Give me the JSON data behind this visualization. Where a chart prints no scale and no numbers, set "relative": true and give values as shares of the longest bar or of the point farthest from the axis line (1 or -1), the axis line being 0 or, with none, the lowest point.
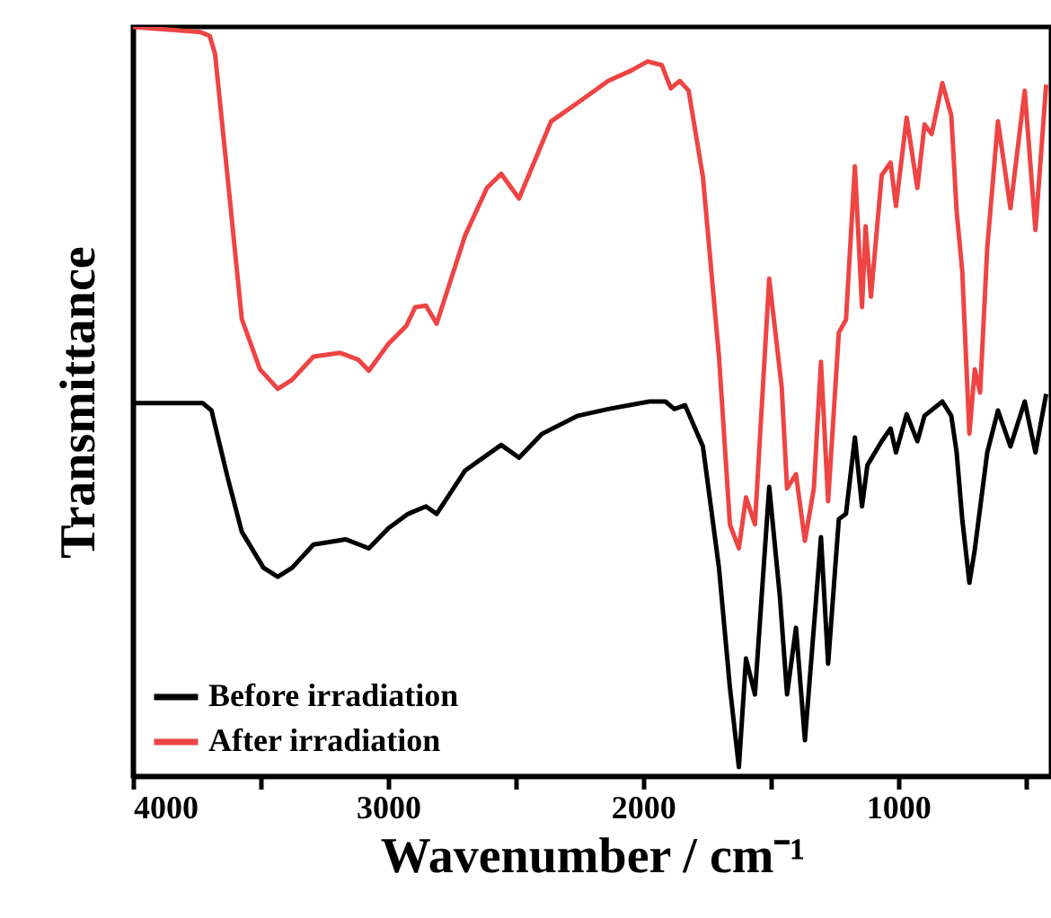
{
  "chart_data": {
    "type": "line",
    "relative": true,
    "xlabel": "Wavenumber / cm⁻¹",
    "ylabel": "Transmittance",
    "xlim": [
      4000,
      400
    ],
    "xticks": [
      4000,
      {
        "value": 3500,
        "label": null
      },
      3000,
      {
        "value": 2500,
        "label": null
      },
      2000,
      {
        "value": 1500,
        "label": null
      },
      1000,
      {
        "value": 500,
        "label": null
      }
    ],
    "legend": "bottom left",
    "grid": false,
    "marker": "none",
    "line_style": "solid",
    "tick_labels": "x",
    "series": [
      {
        "name": "Before irradiation",
        "color": "#000000",
        "x": [
          4000,
          3727,
          3692,
          3629,
          3573,
          3488,
          3432,
          3376,
          3292,
          3166,
          3075,
          2998,
          2921,
          2851,
          2809,
          2697,
          2556,
          2486,
          2395,
          2255,
          2136,
          1975,
          1912,
          1877,
          1835,
          1765,
          1702,
          1659,
          1624,
          1596,
          1561,
          1505,
          1463,
          1435,
          1400,
          1365,
          1330,
          1302,
          1274,
          1232,
          1204,
          1169,
          1141,
          1120,
          1064,
          1029,
          1008,
          966,
          924,
          896,
          826,
          791,
          770,
          748,
          720,
          699,
          650,
          608,
          559,
          503,
          461,
          419
        ],
        "values": [
          0.498,
          0.498,
          0.488,
          0.399,
          0.326,
          0.278,
          0.266,
          0.278,
          0.309,
          0.316,
          0.304,
          0.331,
          0.35,
          0.36,
          0.35,
          0.408,
          0.442,
          0.425,
          0.457,
          0.481,
          0.49,
          0.5,
          0.5,
          0.49,
          0.495,
          0.44,
          0.278,
          0.118,
          0.012,
          0.157,
          0.109,
          0.386,
          0.239,
          0.109,
          0.198,
          0.048,
          0.198,
          0.319,
          0.15,
          0.343,
          0.35,
          0.452,
          0.36,
          0.415,
          0.447,
          0.464,
          0.432,
          0.483,
          0.447,
          0.481,
          0.5,
          0.481,
          0.432,
          0.343,
          0.258,
          0.302,
          0.432,
          0.488,
          0.44,
          0.5,
          0.432,
          0.51
        ]
      },
      {
        "name": "After irradiation",
        "color": "#ee4444",
        "x": [
          4000,
          3734,
          3699,
          3678,
          3629,
          3573,
          3502,
          3432,
          3376,
          3292,
          3187,
          3117,
          3075,
          2998,
          2928,
          2893,
          2851,
          2809,
          2697,
          2612,
          2556,
          2486,
          2360,
          2255,
          2136,
          2045,
          1982,
          1926,
          1891,
          1856,
          1821,
          1765,
          1702,
          1659,
          1624,
          1596,
          1561,
          1505,
          1456,
          1435,
          1400,
          1365,
          1330,
          1302,
          1274,
          1232,
          1204,
          1169,
          1141,
          1127,
          1106,
          1064,
          1029,
          1008,
          966,
          924,
          896,
          868,
          826,
          791,
          770,
          748,
          720,
          699,
          678,
          650,
          608,
          559,
          503,
          461,
          419
        ],
        "values": [
          1.0,
          0.993,
          0.988,
          0.964,
          0.8,
          0.61,
          0.543,
          0.517,
          0.529,
          0.56,
          0.565,
          0.556,
          0.541,
          0.577,
          0.601,
          0.626,
          0.628,
          0.604,
          0.722,
          0.785,
          0.804,
          0.771,
          0.874,
          0.899,
          0.928,
          0.942,
          0.954,
          0.949,
          0.918,
          0.928,
          0.915,
          0.8,
          0.56,
          0.336,
          0.304,
          0.372,
          0.336,
          0.664,
          0.519,
          0.384,
          0.403,
          0.314,
          0.384,
          0.553,
          0.367,
          0.592,
          0.609,
          0.814,
          0.626,
          0.734,
          0.64,
          0.802,
          0.819,
          0.761,
          0.879,
          0.785,
          0.87,
          0.857,
          0.925,
          0.882,
          0.754,
          0.674,
          0.457,
          0.543,
          0.512,
          0.705,
          0.874,
          0.758,
          0.915,
          0.729,
          0.923
        ]
      }
    ]
  }
}
